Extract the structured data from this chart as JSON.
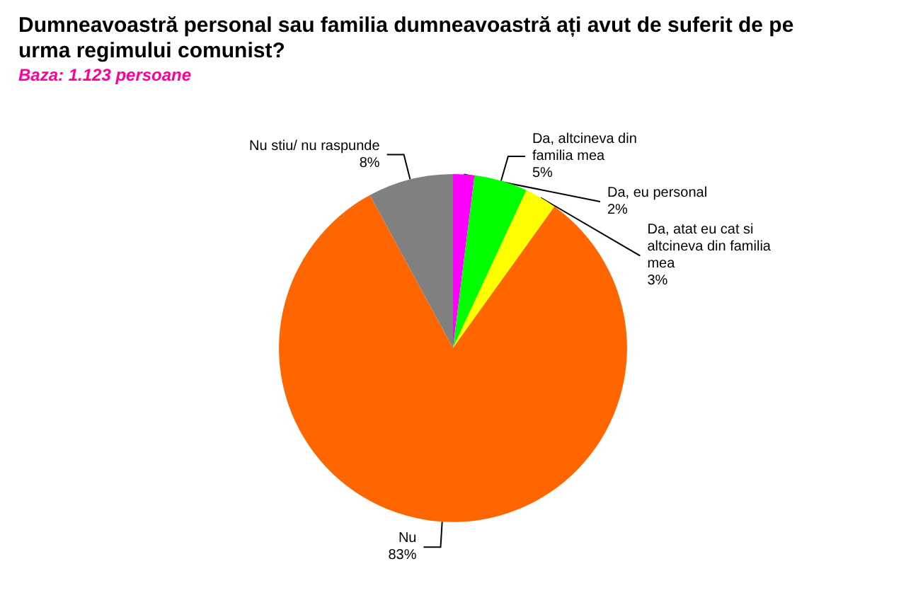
{
  "chart_data": {
    "type": "pie",
    "title": "Dumneavoastră personal sau familia dumneavoastră ați avut de suferit de pe urma regimului comunist?",
    "subtitle": "Baza: 1.123 persoane",
    "categories": [
      "Da, eu personal",
      "Da, altcineva din familia mea",
      "Da, atat eu cat si altcineva din familia mea",
      "Nu",
      "Nu stiu/ nu raspunde"
    ],
    "values": [
      2,
      5,
      3,
      83,
      8
    ],
    "value_labels": [
      "2%",
      "5%",
      "3%",
      "83%",
      "8%"
    ],
    "colors": [
      "#ff00ff",
      "#00ff00",
      "#ffff00",
      "#ff6600",
      "#808080"
    ]
  }
}
